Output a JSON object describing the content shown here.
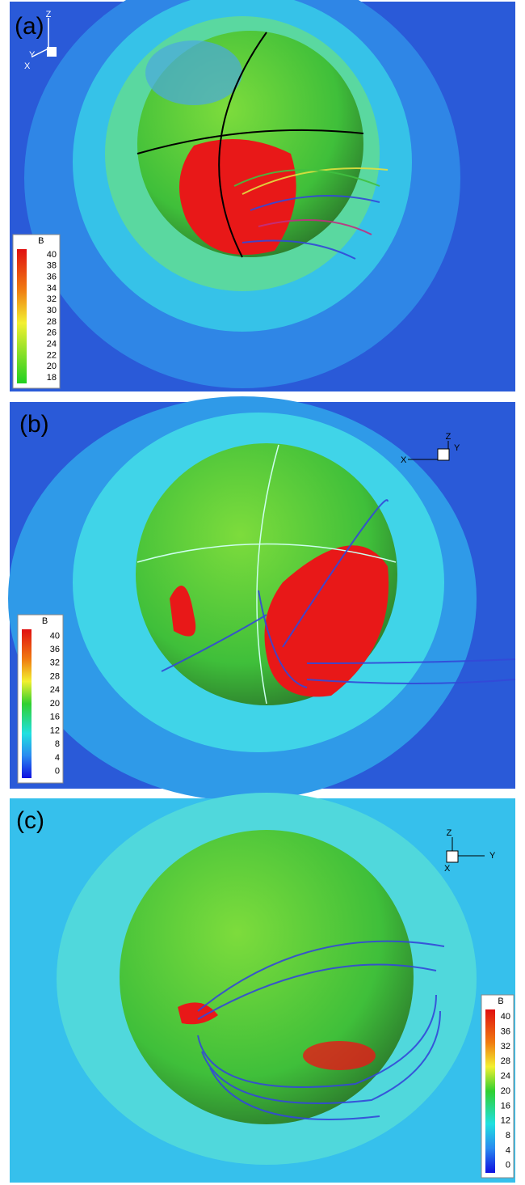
{
  "panels": [
    {
      "label": "(a)",
      "axes": {
        "z": "Z",
        "y": "Y",
        "x": "X"
      },
      "colorbar": {
        "title": "B",
        "ticks": [
          "40",
          "38",
          "36",
          "34",
          "32",
          "30",
          "28",
          "26",
          "24",
          "22",
          "20",
          "18"
        ]
      }
    },
    {
      "label": "(b)",
      "axes": {
        "z": "Z",
        "y": "Y",
        "x": "X"
      },
      "colorbar": {
        "title": "B",
        "ticks": [
          "40",
          "36",
          "32",
          "28",
          "24",
          "20",
          "16",
          "12",
          "8",
          "4",
          "0"
        ]
      }
    },
    {
      "label": "(c)",
      "axes": {
        "z": "Z",
        "y": "Y",
        "x": "X"
      },
      "colorbar": {
        "title": "B",
        "ticks": [
          "40",
          "36",
          "32",
          "28",
          "24",
          "20",
          "16",
          "12",
          "8",
          "4",
          "0"
        ]
      }
    }
  ]
}
